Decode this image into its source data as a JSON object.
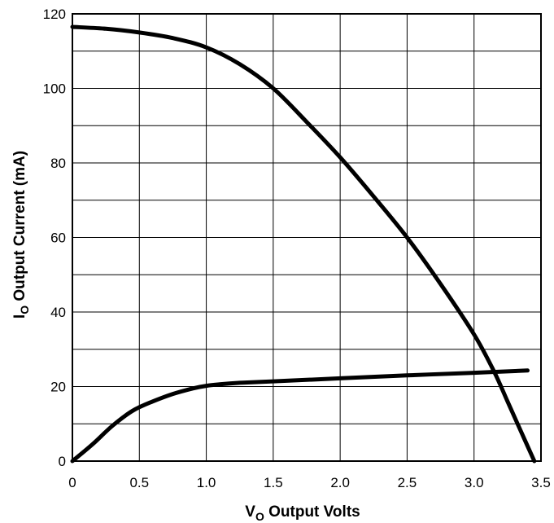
{
  "chart_data": {
    "type": "line",
    "xlabel": {
      "main": "V",
      "sub": "O",
      "rest": " Output Volts"
    },
    "ylabel": {
      "main": "I",
      "sub": "O",
      "rest": " Output Current (mA)"
    },
    "xlim": [
      0,
      3.5
    ],
    "ylim": [
      0,
      120
    ],
    "x_ticks": [
      {
        "value": 0,
        "label": "0"
      },
      {
        "value": 0.5,
        "label": "0.5"
      },
      {
        "value": 1.0,
        "label": "1.0"
      },
      {
        "value": 1.5,
        "label": "1.5"
      },
      {
        "value": 2.0,
        "label": "2.0"
      },
      {
        "value": 2.5,
        "label": "2.5"
      },
      {
        "value": 3.0,
        "label": "3.0"
      },
      {
        "value": 3.5,
        "label": "3.5"
      }
    ],
    "y_ticks": [
      {
        "value": 0,
        "label": "0"
      },
      {
        "value": 20,
        "label": "20"
      },
      {
        "value": 40,
        "label": "40"
      },
      {
        "value": 60,
        "label": "60"
      },
      {
        "value": 80,
        "label": "80"
      },
      {
        "value": 100,
        "label": "100"
      },
      {
        "value": 120,
        "label": "120"
      }
    ],
    "x_grid_step": 0.5,
    "y_grid_step": 10,
    "grid": true,
    "series": [
      {
        "x": [
          0,
          0.25,
          0.5,
          0.75,
          1.0,
          1.25,
          1.5,
          1.75,
          2.0,
          2.25,
          2.5,
          2.75,
          3.0,
          3.15,
          3.25,
          3.35,
          3.45
        ],
        "y": [
          116.5,
          116.0,
          115.0,
          113.5,
          111.0,
          106.5,
          100.0,
          91.0,
          81.5,
          71.0,
          60.0,
          47.5,
          34.0,
          24.0,
          16.0,
          8.0,
          0
        ],
        "color": "#000000"
      },
      {
        "x": [
          0,
          0.15,
          0.3,
          0.45,
          0.6,
          0.75,
          0.9,
          1.0,
          1.1,
          1.25,
          1.5,
          2.0,
          2.5,
          3.0,
          3.4
        ],
        "y": [
          0,
          4.5,
          9.5,
          13.5,
          16.0,
          18.0,
          19.5,
          20.2,
          20.6,
          21.0,
          21.4,
          22.2,
          23.0,
          23.7,
          24.3
        ],
        "color": "#000000"
      }
    ]
  }
}
